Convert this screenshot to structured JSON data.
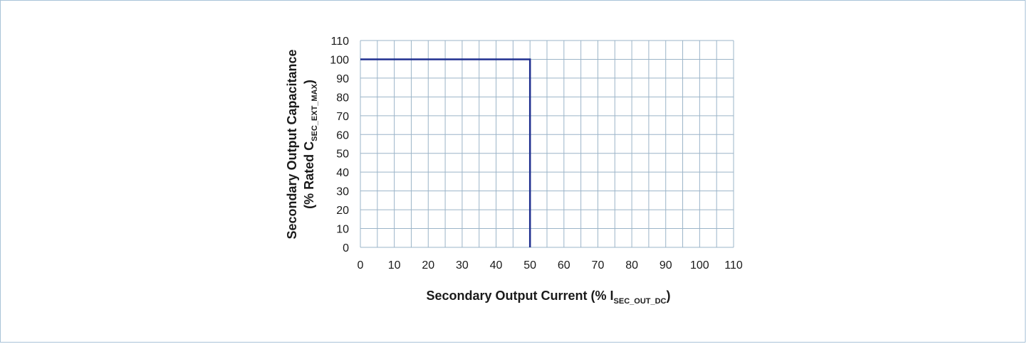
{
  "chart_data": {
    "type": "line",
    "xlabel": {
      "main": "Secondary Output Current (% I",
      "sub": "SEC_OUT_DC",
      "end": ")"
    },
    "ylabel": {
      "line1": "Secondary Output Capacitance",
      "line2_main": "(% Rated C",
      "line2_sub": "SEC_EXT_MAX",
      "line2_end": ")"
    },
    "xlim": [
      0,
      110
    ],
    "ylim": [
      0,
      110
    ],
    "x_ticks": [
      "0",
      "10",
      "20",
      "30",
      "40",
      "50",
      "60",
      "70",
      "80",
      "90",
      "100",
      "110"
    ],
    "y_ticks": [
      "0",
      "10",
      "20",
      "30",
      "40",
      "50",
      "60",
      "70",
      "80",
      "90",
      "100",
      "110"
    ],
    "grid": true,
    "grid_step": 5,
    "series": [
      {
        "color": "#1f2f8f",
        "points": [
          [
            0,
            100
          ],
          [
            50,
            100
          ],
          [
            50,
            0
          ]
        ]
      }
    ],
    "colors": {
      "grid": "#9bb4c8",
      "frame": "#a9c3d8"
    }
  }
}
